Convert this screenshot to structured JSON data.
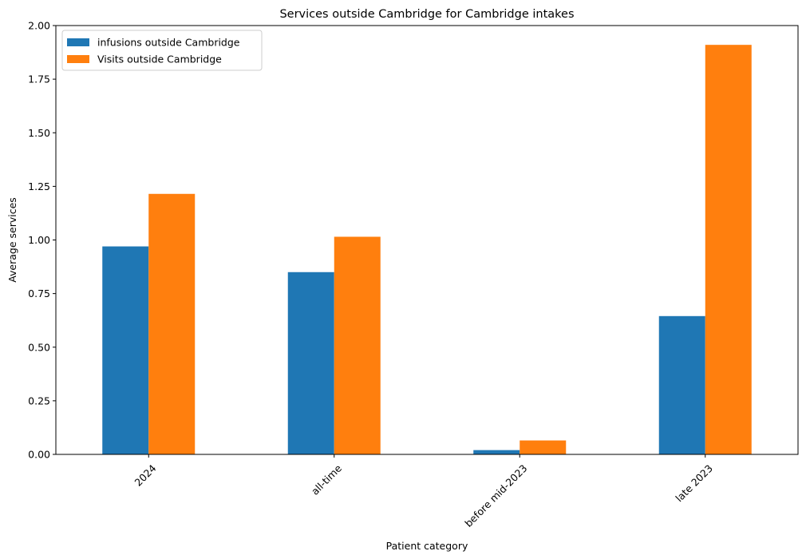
{
  "chart_data": {
    "type": "bar",
    "title": "Services outside Cambridge for Cambridge intakes",
    "xlabel": "Patient category",
    "ylabel": "Average services",
    "categories": [
      "2024",
      "all-time",
      "before mid-2023",
      "late 2023"
    ],
    "series": [
      {
        "name": "infusions outside Cambridge",
        "color": "#1f77b4",
        "values": [
          0.97,
          0.85,
          0.02,
          0.645
        ]
      },
      {
        "name": "Visits outside Cambridge",
        "color": "#ff7f0e",
        "values": [
          1.215,
          1.015,
          0.065,
          1.91
        ]
      }
    ],
    "ylim": [
      0,
      2.0
    ],
    "yticks": [
      0.0,
      0.25,
      0.5,
      0.75,
      1.0,
      1.25,
      1.5,
      1.75,
      2.0
    ],
    "ytick_labels": [
      "0.00",
      "0.25",
      "0.50",
      "0.75",
      "1.00",
      "1.25",
      "1.50",
      "1.75",
      "2.00"
    ],
    "xtick_rotation": 45,
    "grid": false,
    "legend_position": "top-left"
  }
}
